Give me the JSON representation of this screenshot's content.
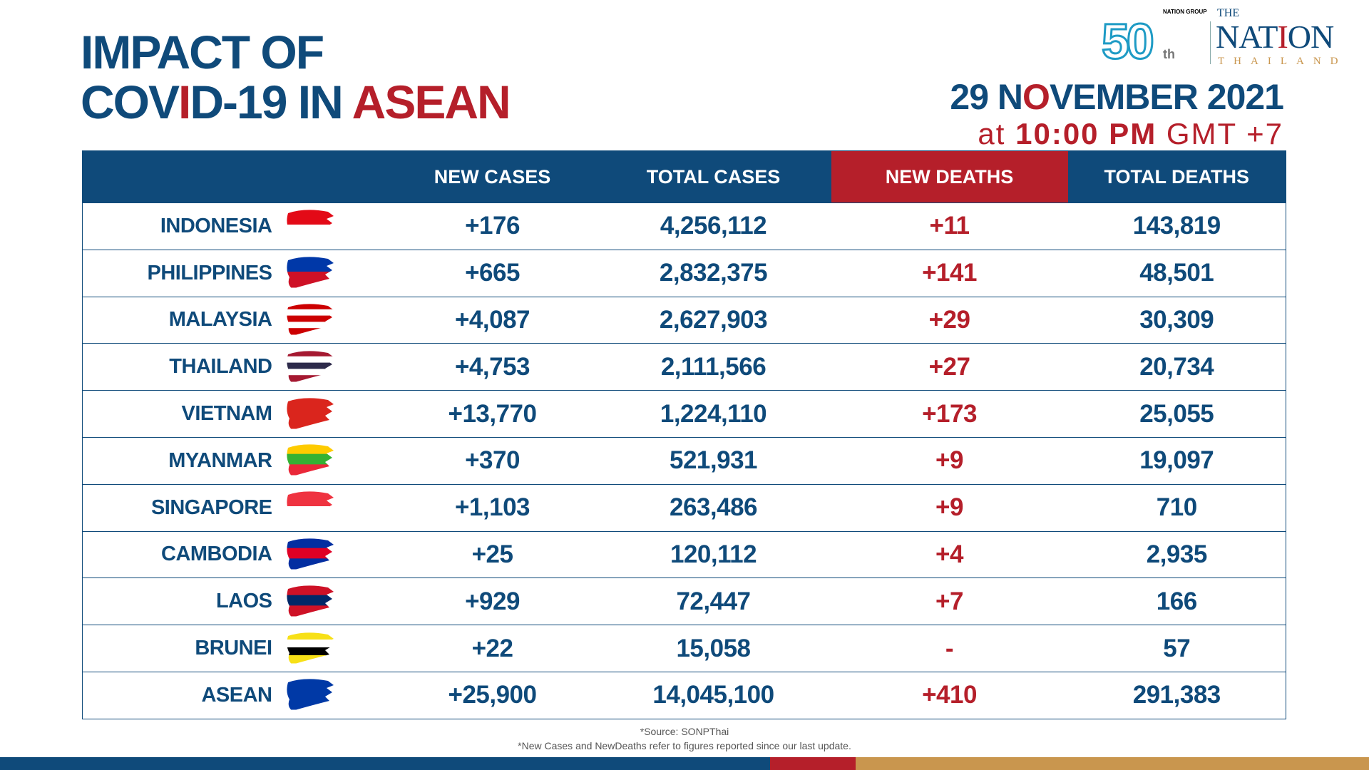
{
  "title": {
    "line1": "IMPACT OF",
    "line2a": "COV",
    "line2b": "I",
    "line2c": "D-19 IN ",
    "line2d": "ASEAN"
  },
  "date": {
    "a": "29 N",
    "b": "O",
    "c": "VEMBER 2021"
  },
  "time": {
    "at": "at ",
    "clock": "10:00 PM",
    "tz": " GMT +7"
  },
  "logo": {
    "anniv": "50",
    "th": "th",
    "group": "NATION GROUP",
    "the": "THE",
    "nation_a": "NAT",
    "nation_i": "I",
    "nation_b": "ON",
    "thailand": "THAILAND"
  },
  "headers": [
    "",
    "NEW CASES",
    "TOTAL CASES",
    "NEW DEATHS",
    "TOTAL DEATHS"
  ],
  "rows": [
    {
      "country": "INDONESIA",
      "new_cases": "+176",
      "total_cases": "4,256,112",
      "new_deaths": "+11",
      "total_deaths": "143,819",
      "flag": [
        "#e30a17",
        "#ffffff"
      ]
    },
    {
      "country": "PHILIPPINES",
      "new_cases": "+665",
      "total_cases": "2,832,375",
      "new_deaths": "+141",
      "total_deaths": "48,501",
      "flag": [
        "#0038a8",
        "#ce1126"
      ]
    },
    {
      "country": "MALAYSIA",
      "new_cases": "+4,087",
      "total_cases": "2,627,903",
      "new_deaths": "+29",
      "total_deaths": "30,309",
      "flag": [
        "#cc0001",
        "#ffffff",
        "#cc0001",
        "#ffffff",
        "#cc0001"
      ]
    },
    {
      "country": "THAILAND",
      "new_cases": "+4,753",
      "total_cases": "2,111,566",
      "new_deaths": "+27",
      "total_deaths": "20,734",
      "flag": [
        "#a51931",
        "#ffffff",
        "#2d2a4a",
        "#ffffff",
        "#a51931"
      ]
    },
    {
      "country": "VIETNAM",
      "new_cases": "+13,770",
      "total_cases": "1,224,110",
      "new_deaths": "+173",
      "total_deaths": "25,055",
      "flag": [
        "#da251d"
      ]
    },
    {
      "country": "MYANMAR",
      "new_cases": "+370",
      "total_cases": "521,931",
      "new_deaths": "+9",
      "total_deaths": "19,097",
      "flag": [
        "#fecb00",
        "#34b233",
        "#ea2839"
      ]
    },
    {
      "country": "SINGAPORE",
      "new_cases": "+1,103",
      "total_cases": "263,486",
      "new_deaths": "+9",
      "total_deaths": "710",
      "flag": [
        "#ef3340",
        "#ffffff"
      ]
    },
    {
      "country": "CAMBODIA",
      "new_cases": "+25",
      "total_cases": "120,112",
      "new_deaths": "+4",
      "total_deaths": "2,935",
      "flag": [
        "#032ea1",
        "#e00025",
        "#032ea1"
      ]
    },
    {
      "country": "LAOS",
      "new_cases": "+929",
      "total_cases": "72,447",
      "new_deaths": "+7",
      "total_deaths": "166",
      "flag": [
        "#ce1126",
        "#002868",
        "#ce1126"
      ]
    },
    {
      "country": "BRUNEI",
      "new_cases": "+22",
      "total_cases": "15,058",
      "new_deaths": "-",
      "total_deaths": "57",
      "flag": [
        "#f7e017",
        "#ffffff",
        "#000000",
        "#f7e017"
      ]
    },
    {
      "country": "ASEAN",
      "new_cases": "+25,900",
      "total_cases": "14,045,100",
      "new_deaths": "+410",
      "total_deaths": "291,383",
      "flag": [
        "#0039a6"
      ]
    }
  ],
  "footer": {
    "source": "*Source: SONPThai",
    "note": "*New Cases and NewDeaths refer to figures reported since our last update."
  },
  "colors": {
    "navy": "#0f4a7a",
    "red": "#b51f2a",
    "gold": "#c9964e"
  }
}
